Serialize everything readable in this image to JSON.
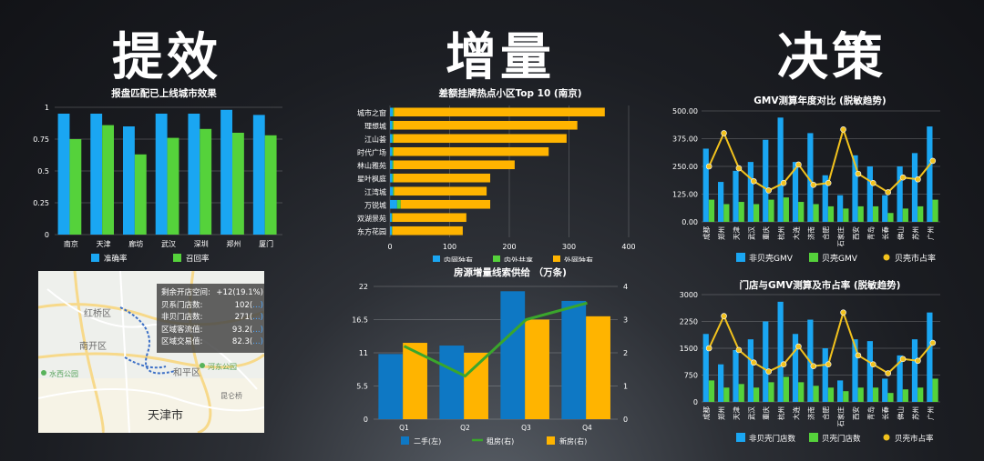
{
  "headings": {
    "left": "提效",
    "middle": "增量",
    "right": "决策"
  },
  "colors": {
    "blue": "#1aa6f2",
    "green": "#55d23b",
    "orange": "#ffb400",
    "dark_blue": "#0e78c4",
    "line_green": "#3aa62c",
    "gold": "#f2c21d"
  },
  "chart_data": [
    {
      "id": "city_match",
      "type": "bar",
      "title": "报盘匹配已上线城市效果",
      "categories": [
        "南京",
        "天津",
        "廊坊",
        "武汉",
        "深圳",
        "郑州",
        "厦门"
      ],
      "series": [
        {
          "name": "准确率",
          "values": [
            0.95,
            0.95,
            0.85,
            0.95,
            0.95,
            0.98,
            0.94
          ]
        },
        {
          "name": "召回率",
          "values": [
            0.75,
            0.86,
            0.63,
            0.76,
            0.83,
            0.8,
            0.78
          ]
        }
      ],
      "ylim": [
        0,
        1
      ],
      "yticks": [
        "0",
        "0.25",
        "0.5",
        "0.75",
        "1"
      ]
    },
    {
      "id": "top10",
      "type": "bar",
      "orientation": "horizontal",
      "title": "差额挂牌热点小区Top 10 (南京)",
      "categories": [
        "城市之窗",
        "理想城",
        "江山荟",
        "时代广场",
        "林山雅苑",
        "星叶枫庭",
        "江湾城",
        "万锐城",
        "双湖景苑",
        "东方花园"
      ],
      "series": [
        {
          "name": "内网独有",
          "values": [
            5,
            4,
            4,
            4,
            4,
            4,
            5,
            12,
            3,
            3
          ]
        },
        {
          "name": "内外共享",
          "values": [
            2,
            2,
            2,
            2,
            2,
            2,
            2,
            6,
            1,
            1
          ]
        },
        {
          "name": "外网独有",
          "values": [
            353,
            308,
            290,
            260,
            203,
            162,
            155,
            150,
            124,
            118
          ]
        }
      ],
      "xlim": [
        0,
        400
      ],
      "xticks": [
        "0",
        "100",
        "200",
        "300",
        "400"
      ]
    },
    {
      "id": "supply",
      "type": "bar",
      "title": "房源增量线索供给 （万条)",
      "categories": [
        "Q1",
        "Q2",
        "Q3",
        "Q4"
      ],
      "series": [
        {
          "name": "二手(左)",
          "values": [
            10.8,
            12.2,
            21.2,
            19.6
          ]
        },
        {
          "name": "租房(右)",
          "type": "line",
          "values": [
            2.2,
            1.3,
            3.0,
            3.5
          ]
        },
        {
          "name": "新房(右)",
          "values": [
            2.3,
            2.0,
            3.0,
            3.1
          ]
        }
      ],
      "ylim_left": [
        0,
        22
      ],
      "ylim_right": [
        0,
        4
      ],
      "yticks_left": [
        "0",
        "5.5",
        "11",
        "16.5",
        "22"
      ],
      "yticks_right": [
        "0",
        "1",
        "2",
        "3",
        "4"
      ]
    },
    {
      "id": "gmv",
      "type": "bar",
      "title": "GMV测算年度对比 (脱敏趋势)",
      "categories": [
        "成都",
        "郑州",
        "天津",
        "武汉",
        "重庆",
        "杭州",
        "大连",
        "济南",
        "合肥",
        "石家庄",
        "西安",
        "青岛",
        "长春",
        "佛山",
        "苏州",
        "广州"
      ],
      "series": [
        {
          "name": "非贝壳GMV",
          "values": [
            330,
            180,
            230,
            270,
            370,
            470,
            270,
            400,
            210,
            120,
            300,
            250,
            120,
            250,
            310,
            430
          ]
        },
        {
          "name": "贝壳GMV",
          "values": [
            100,
            80,
            90,
            80,
            100,
            110,
            90,
            80,
            70,
            60,
            70,
            70,
            40,
            60,
            70,
            100
          ]
        },
        {
          "name": "贝壳市占率",
          "type": "line",
          "values": [
            0.3,
            0.48,
            0.29,
            0.22,
            0.17,
            0.21,
            0.31,
            0.2,
            0.21,
            0.5,
            0.26,
            0.21,
            0.16,
            0.24,
            0.23,
            0.33
          ]
        }
      ],
      "ylim": [
        0,
        500
      ],
      "yticks": [
        "0.00",
        "125.00",
        "250.00",
        "375.00",
        "500.00"
      ]
    },
    {
      "id": "stores",
      "type": "bar",
      "title": "门店与GMV测算及市占率 (脱敏趋势)",
      "categories": [
        "成都",
        "郑州",
        "天津",
        "武汉",
        "重庆",
        "杭州",
        "大连",
        "济南",
        "合肥",
        "石家庄",
        "西安",
        "青岛",
        "长春",
        "佛山",
        "苏州",
        "广州"
      ],
      "series": [
        {
          "name": "非贝壳门店数",
          "values": [
            1900,
            1050,
            1450,
            1750,
            2250,
            2800,
            1900,
            2300,
            1500,
            600,
            1750,
            1700,
            650,
            1300,
            1750,
            2500
          ]
        },
        {
          "name": "贝壳门店数",
          "values": [
            600,
            400,
            500,
            400,
            550,
            700,
            550,
            450,
            400,
            300,
            400,
            400,
            250,
            350,
            400,
            650
          ]
        },
        {
          "name": "贝壳市占率",
          "type": "line",
          "values": [
            0.3,
            0.48,
            0.29,
            0.22,
            0.17,
            0.21,
            0.31,
            0.2,
            0.21,
            0.5,
            0.26,
            0.21,
            0.16,
            0.24,
            0.23,
            0.33
          ]
        }
      ],
      "ylim": [
        0,
        3000
      ],
      "yticks": [
        "0",
        "750",
        "1500",
        "2250",
        "3000"
      ]
    }
  ],
  "map": {
    "labels": {
      "hongqiao": "红桥区",
      "nankai": "南开区",
      "dongli": "河东公园",
      "heping": "和平区",
      "shuishang": "水西公园",
      "tianjin": "天津市",
      "ganwu": "瓦片小区",
      "hexi": "河西",
      "ql": "昆仑桥"
    },
    "info": [
      {
        "k": "剩余开店空间:",
        "v": "+12(19.1%)",
        "tag": ""
      },
      {
        "k": "贝系门店数:",
        "v": "102(",
        "tag": "…)"
      },
      {
        "k": "非贝门店数:",
        "v": "271(",
        "tag": "…)"
      },
      {
        "k": "区域客流值:",
        "v": "93.2(",
        "tag": "…)"
      },
      {
        "k": "区域交易值:",
        "v": "82.3(",
        "tag": "…)"
      }
    ]
  }
}
